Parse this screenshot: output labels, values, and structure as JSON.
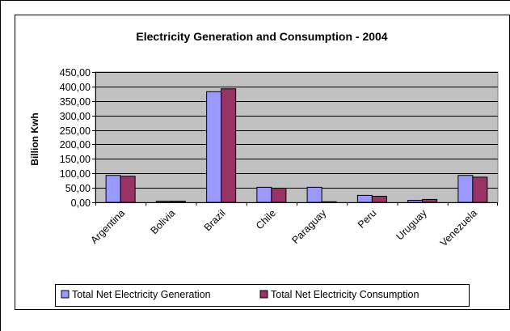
{
  "chart_data": {
    "type": "bar",
    "title": "Electricity Generation and Consumption - 2004",
    "xlabel": "",
    "ylabel": "Billion Kwh",
    "ylim": [
      0,
      450
    ],
    "ytick_values": [
      0,
      50,
      100,
      150,
      200,
      250,
      300,
      350,
      400,
      450
    ],
    "ytick_labels": [
      "0,00",
      "50,00",
      "100,00",
      "150,00",
      "200,00",
      "250,00",
      "300,00",
      "350,00",
      "400,00",
      "450,00"
    ],
    "categories": [
      "Argentina",
      "Bolivia",
      "Brazil",
      "Chile",
      "Paraguay",
      "Peru",
      "Uruguay",
      "Venezuela"
    ],
    "series": [
      {
        "name": "Total Net Electricity Generation",
        "color": "#9999FF",
        "values": [
          93,
          4,
          382,
          52,
          52,
          24,
          7,
          93
        ]
      },
      {
        "name": "Total Net Electricity Consumption",
        "color": "#993366",
        "values": [
          90,
          4,
          392,
          49,
          2,
          21,
          10,
          87
        ]
      }
    ],
    "plot_background": "#C0C0C0",
    "grid": true,
    "legend_position": "bottom"
  }
}
